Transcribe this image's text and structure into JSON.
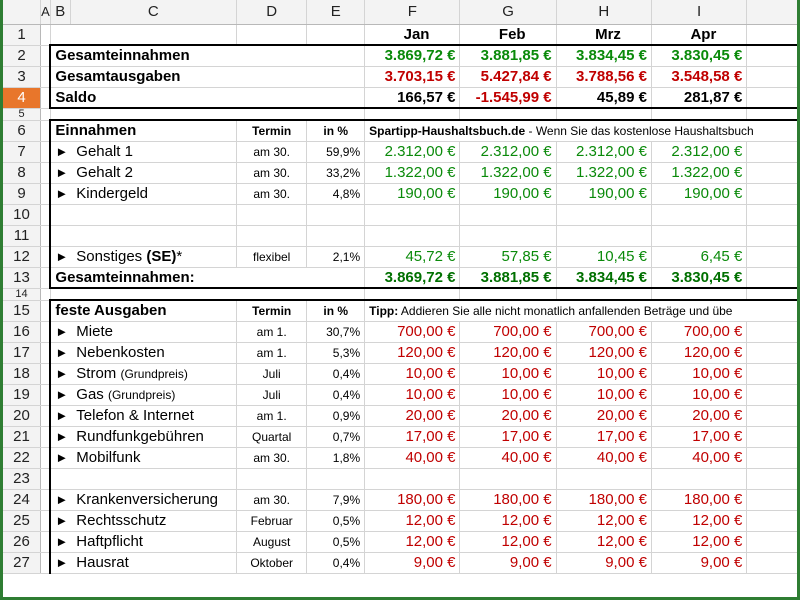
{
  "columns": [
    "A",
    "B",
    "C",
    "D",
    "E",
    "F",
    "G",
    "H",
    "I"
  ],
  "months": {
    "F": "Jan",
    "G": "Feb",
    "H": "Mrz",
    "I": "Apr"
  },
  "summary": {
    "income_label": "Gesamteinnahmen",
    "income": [
      "3.869,72 €",
      "3.881,85 €",
      "3.834,45 €",
      "3.830,45 €"
    ],
    "expense_label": "Gesamtausgaben",
    "expense": [
      "3.703,15 €",
      "5.427,84 €",
      "3.788,56 €",
      "3.548,58 €"
    ],
    "balance_label": "Saldo",
    "balance": [
      "166,57 €",
      "-1.545,99 €",
      "45,89 €",
      "281,87 €"
    ]
  },
  "income_section": {
    "title": "Einnahmen",
    "col_termin": "Termin",
    "col_pct": "in %",
    "note_bold": "Spartipp-Haushaltsbuch.de",
    "note_rest": " - Wenn Sie das kostenlose Haushaltsbuch",
    "rows": [
      {
        "label": "Gehalt 1",
        "termin": "am 30.",
        "pct": "59,9%",
        "vals": [
          "2.312,00 €",
          "2.312,00 €",
          "2.312,00 €",
          "2.312,00 €"
        ]
      },
      {
        "label": "Gehalt 2",
        "termin": "am 30.",
        "pct": "33,2%",
        "vals": [
          "1.322,00 €",
          "1.322,00 €",
          "1.322,00 €",
          "1.322,00 €"
        ]
      },
      {
        "label": "Kindergeld",
        "termin": "am 30.",
        "pct": "4,8%",
        "vals": [
          "190,00 €",
          "190,00 €",
          "190,00 €",
          "190,00 €"
        ]
      }
    ],
    "other": {
      "label_a": "Sonstiges ",
      "label_b": "(SE)",
      "label_c": "*",
      "termin": "flexibel",
      "pct": "2,1%",
      "vals": [
        "45,72 €",
        "57,85 €",
        "10,45 €",
        "6,45 €"
      ]
    },
    "total_label": "Gesamteinnahmen:",
    "total": [
      "3.869,72 €",
      "3.881,85 €",
      "3.834,45 €",
      "3.830,45 €"
    ]
  },
  "fixed_section": {
    "title": "feste Ausgaben",
    "col_termin": "Termin",
    "col_pct": "in %",
    "note_bold": "Tipp:",
    "note_rest": " Addieren Sie alle nicht monatlich anfallenden Beträge und übe",
    "rows": [
      {
        "label": "Miete",
        "sub": "",
        "termin": "am 1.",
        "pct": "30,7%",
        "vals": [
          "700,00 €",
          "700,00 €",
          "700,00 €",
          "700,00 €"
        ]
      },
      {
        "label": "Nebenkosten",
        "sub": "",
        "termin": "am 1.",
        "pct": "5,3%",
        "vals": [
          "120,00 €",
          "120,00 €",
          "120,00 €",
          "120,00 €"
        ]
      },
      {
        "label": "Strom",
        "sub": "(Grundpreis)",
        "termin": "Juli",
        "pct": "0,4%",
        "vals": [
          "10,00 €",
          "10,00 €",
          "10,00 €",
          "10,00 €"
        ]
      },
      {
        "label": "Gas",
        "sub": "(Grundpreis)",
        "termin": "Juli",
        "pct": "0,4%",
        "vals": [
          "10,00 €",
          "10,00 €",
          "10,00 €",
          "10,00 €"
        ]
      },
      {
        "label": "Telefon & Internet",
        "sub": "",
        "termin": "am 1.",
        "pct": "0,9%",
        "vals": [
          "20,00 €",
          "20,00 €",
          "20,00 €",
          "20,00 €"
        ]
      },
      {
        "label": "Rundfunkgebühren",
        "sub": "",
        "termin": "Quartal",
        "pct": "0,7%",
        "vals": [
          "17,00 €",
          "17,00 €",
          "17,00 €",
          "17,00 €"
        ]
      },
      {
        "label": "Mobilfunk",
        "sub": "",
        "termin": "am 30.",
        "pct": "1,8%",
        "vals": [
          "40,00 €",
          "40,00 €",
          "40,00 €",
          "40,00 €"
        ]
      }
    ],
    "rows2": [
      {
        "label": "Krankenversicherung",
        "termin": "am 30.",
        "pct": "7,9%",
        "vals": [
          "180,00 €",
          "180,00 €",
          "180,00 €",
          "180,00 €"
        ]
      },
      {
        "label": "Rechtsschutz",
        "termin": "Februar",
        "pct": "0,5%",
        "vals": [
          "12,00 €",
          "12,00 €",
          "12,00 €",
          "12,00 €"
        ]
      },
      {
        "label": "Haftpflicht",
        "termin": "August",
        "pct": "0,5%",
        "vals": [
          "12,00 €",
          "12,00 €",
          "12,00 €",
          "12,00 €"
        ]
      },
      {
        "label": "Hausrat",
        "termin": "Oktober",
        "pct": "0,4%",
        "vals": [
          "9,00 €",
          "9,00 €",
          "9,00 €",
          "9,00 €"
        ]
      }
    ]
  },
  "row_numbers": [
    "1",
    "2",
    "3",
    "4",
    "5",
    "6",
    "7",
    "8",
    "9",
    "10",
    "11",
    "12",
    "13",
    "14",
    "15",
    "16",
    "17",
    "18",
    "19",
    "20",
    "21",
    "22",
    "23",
    "24",
    "25",
    "26",
    "27"
  ],
  "arrow": "►"
}
